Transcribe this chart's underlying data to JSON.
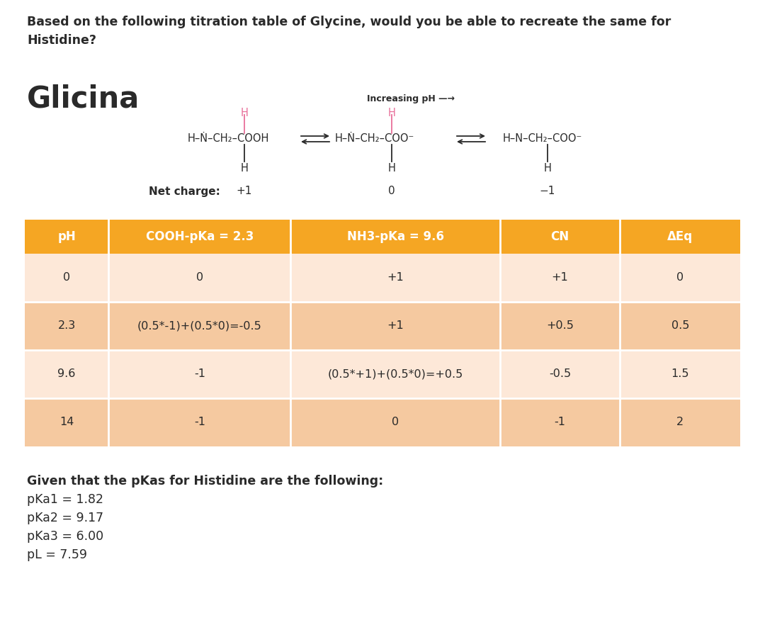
{
  "title_question": "Based on the following titration table of Glycine, would you be able to recreate the same for\nHistidine?",
  "amino_acid_name": "Glicina",
  "increasing_ph_label": "Increasing pH —→",
  "net_charge_label": "Net charge:",
  "net_charges": [
    "+1",
    "0",
    "-1"
  ],
  "table_header": [
    "pH",
    "COOH-pKa = 2.3",
    "NH3-pKa = 9.6",
    "CN",
    "ΔEq"
  ],
  "table_rows": [
    [
      "0",
      "0",
      "+1",
      "+1",
      "0"
    ],
    [
      "2.3",
      "(0.5*-1)+(0.5*0)=-0.5",
      "+1",
      "+0.5",
      "0.5"
    ],
    [
      "9.6",
      "-1",
      "(0.5*+1)+(0.5*0)=+0.5",
      "-0.5",
      "1.5"
    ],
    [
      "14",
      "-1",
      "0",
      "-1",
      "2"
    ]
  ],
  "footer_lines": [
    "Given that the pKas for Histidine are the following:",
    "pKa1 = 1.82",
    "pKa2 = 9.17",
    "pKa3 = 6.00",
    "pL = 7.59"
  ],
  "header_bg_color": "#F5A623",
  "header_text_color": "#FFFFFF",
  "row_bg_even": "#FDE8D8",
  "row_bg_odd": "#F5C9A0",
  "text_color": "#2a2a2a",
  "pink_color": "#E8709A",
  "structure_color": "#2a2a2a",
  "background_color": "#FFFFFF",
  "title_fontsize": 12.5,
  "amino_acid_fontsize": 30,
  "table_header_fontsize": 12,
  "table_data_fontsize": 11.5,
  "footer_fontsize": 12.5,
  "struct_fontsize": 10.5,
  "net_charge_fontsize": 11
}
